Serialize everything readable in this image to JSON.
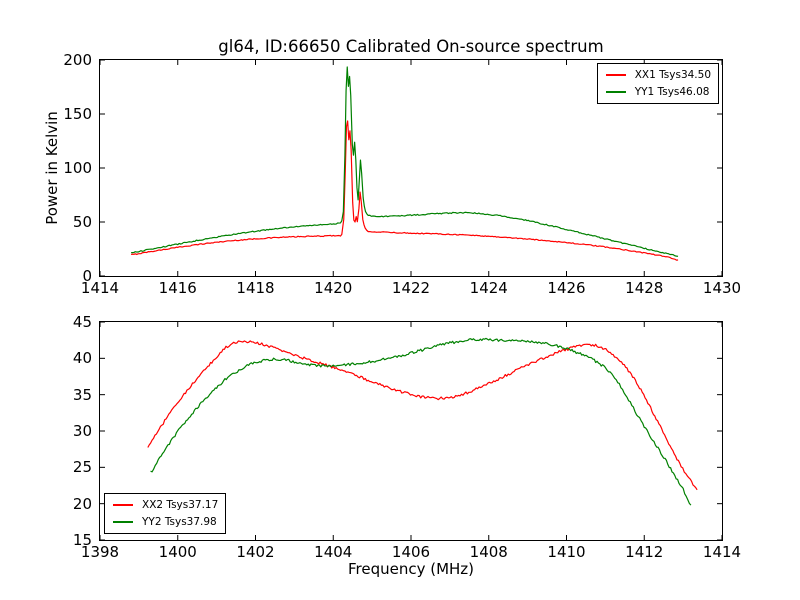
{
  "title": "gl64, ID:66650 Calibrated On-source spectrum",
  "background": "#ffffff",
  "axis_color": "#000000",
  "chart_data": [
    {
      "type": "line",
      "position": "top",
      "xlabel": "",
      "ylabel": "Power in Kelvin",
      "xlim": [
        1414,
        1430
      ],
      "ylim": [
        0,
        200
      ],
      "xticks": [
        1414,
        1416,
        1418,
        1420,
        1422,
        1424,
        1426,
        1428,
        1430
      ],
      "yticks": [
        0,
        50,
        100,
        150,
        200
      ],
      "grid": false,
      "legend_position": "upper right",
      "series": [
        {
          "name": "XX1 Tsys34.50",
          "color": "#ff0000",
          "noise": 0.45,
          "points": [
            [
              1414.8,
              19.7
            ],
            [
              1415.2,
              22.0
            ],
            [
              1415.6,
              24.3
            ],
            [
              1416.0,
              26.5
            ],
            [
              1416.4,
              28.6
            ],
            [
              1416.8,
              30.4
            ],
            [
              1417.2,
              32.0
            ],
            [
              1417.6,
              33.3
            ],
            [
              1418.0,
              34.4
            ],
            [
              1418.4,
              35.3
            ],
            [
              1418.8,
              36.0
            ],
            [
              1419.2,
              36.5
            ],
            [
              1419.6,
              36.9
            ],
            [
              1420.0,
              37.3
            ],
            [
              1420.15,
              37.7
            ],
            [
              1420.22,
              38.6
            ],
            [
              1420.27,
              52
            ],
            [
              1420.31,
              98
            ],
            [
              1420.34,
              138
            ],
            [
              1420.37,
              144
            ],
            [
              1420.4,
              126
            ],
            [
              1420.43,
              134
            ],
            [
              1420.46,
              117
            ],
            [
              1420.5,
              68
            ],
            [
              1420.53,
              52
            ],
            [
              1420.56,
              50
            ],
            [
              1420.59,
              55
            ],
            [
              1420.62,
              50
            ],
            [
              1420.66,
              62
            ],
            [
              1420.69,
              78
            ],
            [
              1420.72,
              69
            ],
            [
              1420.76,
              52
            ],
            [
              1420.82,
              44
            ],
            [
              1420.9,
              41.5
            ],
            [
              1421.1,
              40.9
            ],
            [
              1421.4,
              40.4
            ],
            [
              1421.8,
              39.9
            ],
            [
              1422.2,
              39.5
            ],
            [
              1422.6,
              39.1
            ],
            [
              1423.0,
              38.6
            ],
            [
              1423.4,
              38.0
            ],
            [
              1423.8,
              37.2
            ],
            [
              1424.2,
              36.3
            ],
            [
              1424.6,
              35.3
            ],
            [
              1425.0,
              34.2
            ],
            [
              1425.4,
              33.0
            ],
            [
              1425.8,
              31.7
            ],
            [
              1426.2,
              30.2
            ],
            [
              1426.6,
              28.6
            ],
            [
              1427.0,
              26.8
            ],
            [
              1427.4,
              24.8
            ],
            [
              1427.8,
              22.6
            ],
            [
              1428.2,
              20.2
            ],
            [
              1428.5,
              18.2
            ],
            [
              1428.7,
              16.6
            ],
            [
              1428.87,
              14.8
            ]
          ]
        },
        {
          "name": "YY1 Tsys46.08",
          "color": "#008000",
          "noise": 0.5,
          "points": [
            [
              1414.8,
              21.6
            ],
            [
              1415.2,
              24.1
            ],
            [
              1415.6,
              26.8
            ],
            [
              1416.0,
              29.5
            ],
            [
              1416.4,
              32.2
            ],
            [
              1416.8,
              34.8
            ],
            [
              1417.2,
              37.2
            ],
            [
              1417.6,
              39.4
            ],
            [
              1418.0,
              41.4
            ],
            [
              1418.4,
              43.2
            ],
            [
              1418.8,
              44.8
            ],
            [
              1419.2,
              46.1
            ],
            [
              1419.6,
              47.2
            ],
            [
              1420.0,
              48.2
            ],
            [
              1420.15,
              48.9
            ],
            [
              1420.22,
              51
            ],
            [
              1420.26,
              60
            ],
            [
              1420.3,
              112
            ],
            [
              1420.33,
              172
            ],
            [
              1420.36,
              194
            ],
            [
              1420.39,
              176
            ],
            [
              1420.42,
              185
            ],
            [
              1420.45,
              167
            ],
            [
              1420.49,
              122
            ],
            [
              1420.52,
              112
            ],
            [
              1420.55,
              124
            ],
            [
              1420.58,
              108
            ],
            [
              1420.61,
              82
            ],
            [
              1420.64,
              70
            ],
            [
              1420.67,
              88
            ],
            [
              1420.7,
              107
            ],
            [
              1420.73,
              95
            ],
            [
              1420.77,
              72
            ],
            [
              1420.83,
              60
            ],
            [
              1420.9,
              56.5
            ],
            [
              1421.1,
              55.2
            ],
            [
              1421.4,
              55.3
            ],
            [
              1421.8,
              55.9
            ],
            [
              1422.2,
              56.7
            ],
            [
              1422.6,
              57.6
            ],
            [
              1423.0,
              58.3
            ],
            [
              1423.3,
              58.6
            ],
            [
              1423.6,
              58.3
            ],
            [
              1424.0,
              57.0
            ],
            [
              1424.4,
              55.2
            ],
            [
              1424.8,
              52.7
            ],
            [
              1425.2,
              49.7
            ],
            [
              1425.6,
              46.5
            ],
            [
              1426.0,
              43.1
            ],
            [
              1426.4,
              39.6
            ],
            [
              1426.8,
              36.1
            ],
            [
              1427.2,
              32.6
            ],
            [
              1427.6,
              29.1
            ],
            [
              1428.0,
              25.7
            ],
            [
              1428.4,
              22.4
            ],
            [
              1428.7,
              20.0
            ],
            [
              1428.87,
              18.2
            ]
          ]
        }
      ]
    },
    {
      "type": "line",
      "position": "bottom",
      "xlabel": "Frequency (MHz)",
      "ylabel": "",
      "xlim": [
        1398,
        1414
      ],
      "ylim": [
        15,
        45
      ],
      "xticks": [
        1398,
        1400,
        1402,
        1404,
        1406,
        1408,
        1410,
        1412,
        1414
      ],
      "yticks": [
        15,
        20,
        25,
        30,
        35,
        40,
        45
      ],
      "grid": false,
      "legend_position": "lower left",
      "series": [
        {
          "name": "XX2 Tsys37.17",
          "color": "#ff0000",
          "noise": 0.18,
          "points": [
            [
              1399.23,
              27.8
            ],
            [
              1399.45,
              29.6
            ],
            [
              1399.7,
              31.7
            ],
            [
              1399.95,
              33.6
            ],
            [
              1400.2,
              35.3
            ],
            [
              1400.45,
              36.9
            ],
            [
              1400.7,
              38.4
            ],
            [
              1400.95,
              39.9
            ],
            [
              1401.2,
              41.3
            ],
            [
              1401.4,
              42.0
            ],
            [
              1401.6,
              42.35
            ],
            [
              1401.9,
              42.25
            ],
            [
              1402.2,
              41.9
            ],
            [
              1402.5,
              41.4
            ],
            [
              1402.8,
              40.85
            ],
            [
              1403.1,
              40.3
            ],
            [
              1403.4,
              39.75
            ],
            [
              1403.7,
              39.25
            ],
            [
              1404.0,
              38.75
            ],
            [
              1404.3,
              38.2
            ],
            [
              1404.6,
              37.6
            ],
            [
              1404.9,
              37.0
            ],
            [
              1405.2,
              36.4
            ],
            [
              1405.5,
              35.8
            ],
            [
              1405.8,
              35.3
            ],
            [
              1406.1,
              34.9
            ],
            [
              1406.4,
              34.6
            ],
            [
              1406.7,
              34.5
            ],
            [
              1407.0,
              34.65
            ],
            [
              1407.3,
              35.0
            ],
            [
              1407.6,
              35.6
            ],
            [
              1407.9,
              36.3
            ],
            [
              1408.2,
              37.0
            ],
            [
              1408.5,
              37.8
            ],
            [
              1408.8,
              38.6
            ],
            [
              1409.1,
              39.3
            ],
            [
              1409.4,
              40.0
            ],
            [
              1409.7,
              40.7
            ],
            [
              1410.0,
              41.2
            ],
            [
              1410.3,
              41.7
            ],
            [
              1410.6,
              41.9
            ],
            [
              1410.9,
              41.5
            ],
            [
              1411.2,
              40.5
            ],
            [
              1411.45,
              39.2
            ],
            [
              1411.7,
              37.5
            ],
            [
              1411.95,
              35.3
            ],
            [
              1412.2,
              32.8
            ],
            [
              1412.45,
              30.2
            ],
            [
              1412.7,
              27.6
            ],
            [
              1412.95,
              25.2
            ],
            [
              1413.15,
              23.5
            ],
            [
              1413.36,
              21.9
            ]
          ]
        },
        {
          "name": "YY2 Tsys37.98",
          "color": "#008000",
          "noise": 0.18,
          "points": [
            [
              1399.3,
              24.3
            ],
            [
              1399.5,
              26.0
            ],
            [
              1399.75,
              28.0
            ],
            [
              1400.0,
              29.9
            ],
            [
              1400.25,
              31.6
            ],
            [
              1400.5,
              33.2
            ],
            [
              1400.75,
              34.7
            ],
            [
              1401.0,
              36.0
            ],
            [
              1401.25,
              37.2
            ],
            [
              1401.5,
              38.1
            ],
            [
              1401.75,
              38.9
            ],
            [
              1402.0,
              39.4
            ],
            [
              1402.25,
              39.75
            ],
            [
              1402.5,
              39.9
            ],
            [
              1402.75,
              39.8
            ],
            [
              1403.0,
              39.5
            ],
            [
              1403.25,
              39.2
            ],
            [
              1403.5,
              39.05
            ],
            [
              1403.75,
              39.0
            ],
            [
              1404.0,
              39.05
            ],
            [
              1404.25,
              39.1
            ],
            [
              1404.5,
              39.2
            ],
            [
              1404.75,
              39.35
            ],
            [
              1405.0,
              39.55
            ],
            [
              1405.25,
              39.8
            ],
            [
              1405.5,
              40.1
            ],
            [
              1405.75,
              40.4
            ],
            [
              1406.0,
              40.75
            ],
            [
              1406.25,
              41.1
            ],
            [
              1406.5,
              41.5
            ],
            [
              1406.75,
              41.85
            ],
            [
              1407.0,
              42.1
            ],
            [
              1407.25,
              42.35
            ],
            [
              1407.5,
              42.5
            ],
            [
              1407.75,
              42.6
            ],
            [
              1408.0,
              42.55
            ],
            [
              1408.25,
              42.5
            ],
            [
              1408.5,
              42.45
            ],
            [
              1408.75,
              42.4
            ],
            [
              1409.0,
              42.3
            ],
            [
              1409.25,
              42.2
            ],
            [
              1409.5,
              42.0
            ],
            [
              1409.75,
              41.7
            ],
            [
              1410.0,
              41.35
            ],
            [
              1410.25,
              40.85
            ],
            [
              1410.5,
              40.3
            ],
            [
              1410.75,
              39.6
            ],
            [
              1411.0,
              38.7
            ],
            [
              1411.2,
              37.6
            ],
            [
              1411.4,
              36.1
            ],
            [
              1411.6,
              34.3
            ],
            [
              1411.8,
              32.4
            ],
            [
              1412.0,
              30.6
            ],
            [
              1412.25,
              28.5
            ],
            [
              1412.5,
              26.4
            ],
            [
              1412.75,
              24.2
            ],
            [
              1413.0,
              22.0
            ],
            [
              1413.2,
              19.8
            ]
          ]
        }
      ]
    }
  ]
}
